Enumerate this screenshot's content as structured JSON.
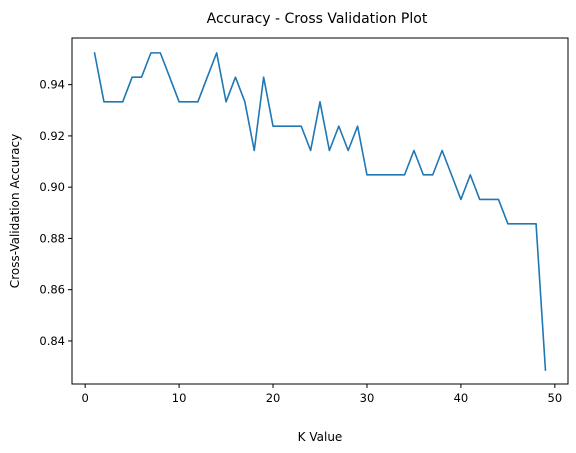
{
  "chart_data": {
    "type": "line",
    "title": "Accuracy - Cross Validation Plot",
    "xlabel": "K Value",
    "ylabel": "Cross-Validation Accuracy",
    "xlim": [
      -1.4,
      51.4
    ],
    "ylim": [
      0.8232,
      0.9582
    ],
    "xticks": [
      0,
      10,
      20,
      30,
      40,
      50
    ],
    "yticks": [
      0.84,
      0.86,
      0.88,
      0.9,
      0.92,
      0.94
    ],
    "ytick_labels": [
      "0.84",
      "0.86",
      "0.88",
      "0.90",
      "0.92",
      "0.94"
    ],
    "grid": false,
    "line_color": "#1f77b4",
    "series": [
      {
        "x": [
          1,
          2,
          3,
          4,
          5,
          6,
          7,
          8,
          9,
          10,
          11,
          12,
          13,
          14,
          15,
          16,
          17,
          18,
          19,
          20,
          21,
          22,
          23,
          24,
          25,
          26,
          27,
          28,
          29,
          30,
          31,
          32,
          33,
          34,
          35,
          36,
          37,
          38,
          39,
          40,
          41,
          42,
          43,
          44,
          45,
          46,
          47,
          48,
          49
        ],
        "values": [
          0.9524,
          0.9333,
          0.9333,
          0.9333,
          0.9429,
          0.9429,
          0.9524,
          0.9524,
          0.9429,
          0.9333,
          0.9333,
          0.9333,
          0.9429,
          0.9524,
          0.9333,
          0.9429,
          0.9333,
          0.9143,
          0.9429,
          0.9238,
          0.9238,
          0.9238,
          0.9238,
          0.9143,
          0.9333,
          0.9143,
          0.9238,
          0.9143,
          0.9238,
          0.9048,
          0.9048,
          0.9048,
          0.9048,
          0.9048,
          0.9143,
          0.9048,
          0.9048,
          0.9143,
          0.9048,
          0.8952,
          0.9048,
          0.8952,
          0.8952,
          0.8952,
          0.8857,
          0.8857,
          0.8857,
          0.8857,
          0.8286
        ]
      }
    ]
  }
}
